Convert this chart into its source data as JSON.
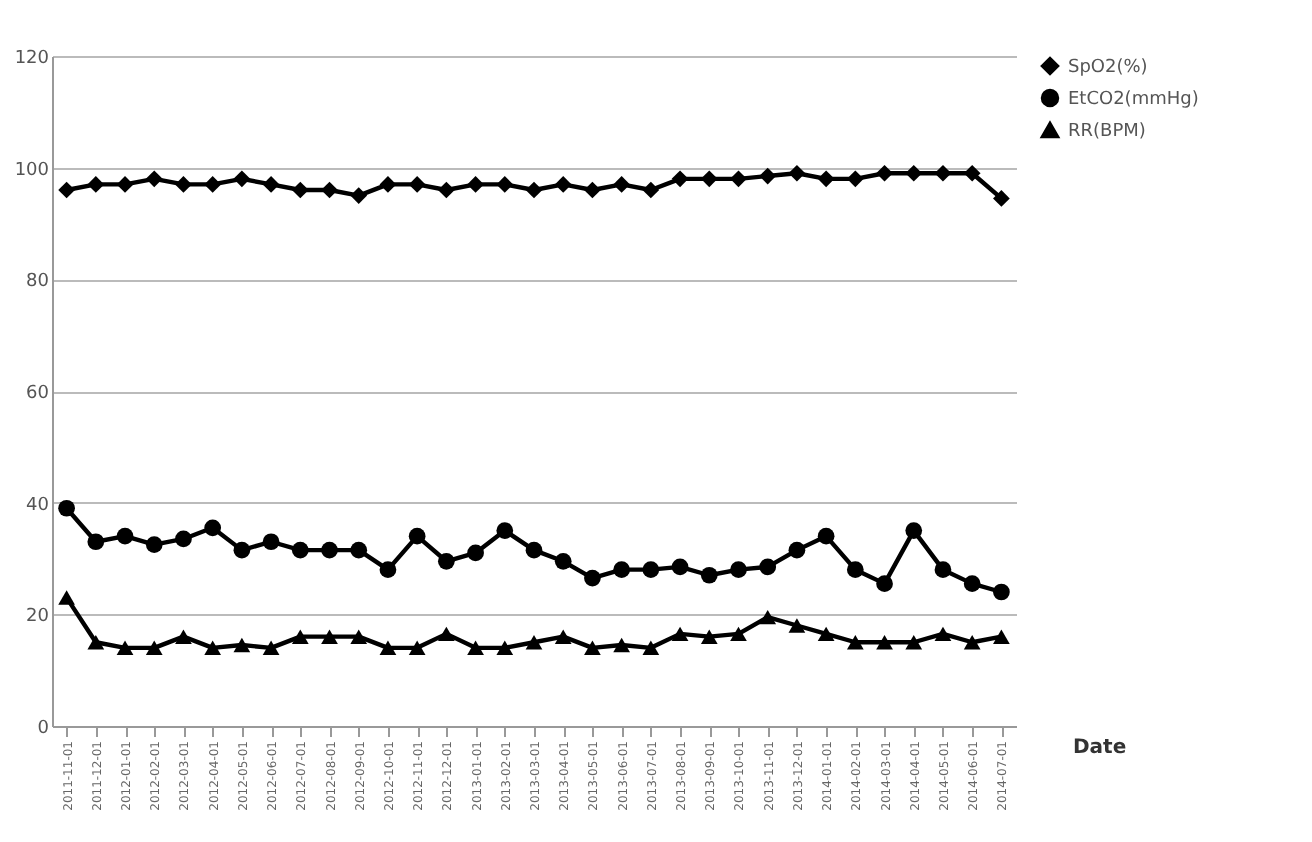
{
  "chart_data": {
    "type": "line",
    "xlabel": "Date",
    "categories": [
      "2011-11-01",
      "2011-12-01",
      "2012-01-01",
      "2012-02-01",
      "2012-03-01",
      "2012-04-01",
      "2012-05-01",
      "2012-06-01",
      "2012-07-01",
      "2012-08-01",
      "2012-09-01",
      "2012-10-01",
      "2012-11-01",
      "2012-12-01",
      "2013-01-01",
      "2013-02-01",
      "2013-03-01",
      "2013-04-01",
      "2013-05-01",
      "2013-06-01",
      "2013-07-01",
      "2013-08-01",
      "2013-09-01",
      "2013-10-01",
      "2013-11-01",
      "2013-12-01",
      "2014-01-01",
      "2014-02-01",
      "2014-03-01",
      "2014-04-01",
      "2014-05-01",
      "2014-06-01",
      "2014-07-01"
    ],
    "series": [
      {
        "name": "SpO2(%)",
        "color": "#000000",
        "marker": "diamond",
        "values": [
          96,
          97,
          97,
          98,
          97,
          97,
          98,
          97,
          96,
          96,
          95,
          97,
          97,
          96,
          97,
          97,
          96,
          97,
          96,
          97,
          96,
          98,
          98,
          98,
          98.5,
          99,
          98,
          98,
          99,
          99,
          99,
          99,
          94.5
        ]
      },
      {
        "name": "EtCO2(mmHg)",
        "color": "#000000",
        "marker": "circle",
        "values": [
          39,
          33,
          34,
          32.5,
          33.5,
          35.5,
          31.5,
          33,
          31.5,
          31.5,
          31.5,
          28,
          34,
          29.5,
          31,
          35,
          31.5,
          29.5,
          26.5,
          28,
          28,
          28.5,
          27,
          28,
          28.5,
          31.5,
          34,
          28,
          25.5,
          35,
          28,
          25.5,
          24
        ]
      },
      {
        "name": "RR(BPM)",
        "color": "#000000",
        "marker": "triangle",
        "values": [
          23,
          15,
          14,
          14,
          16,
          14,
          14.5,
          14,
          16,
          16,
          16,
          14,
          14,
          16.5,
          14,
          14,
          15,
          16,
          14,
          14.5,
          14,
          16.5,
          16,
          16.5,
          19.5,
          18,
          16.5,
          15,
          15,
          15,
          16.5,
          15,
          16
        ]
      }
    ],
    "ylim": [
      0,
      120
    ],
    "yticks": [
      0,
      20,
      40,
      60,
      80,
      100,
      120
    ],
    "grid": "y",
    "legend": "right"
  }
}
